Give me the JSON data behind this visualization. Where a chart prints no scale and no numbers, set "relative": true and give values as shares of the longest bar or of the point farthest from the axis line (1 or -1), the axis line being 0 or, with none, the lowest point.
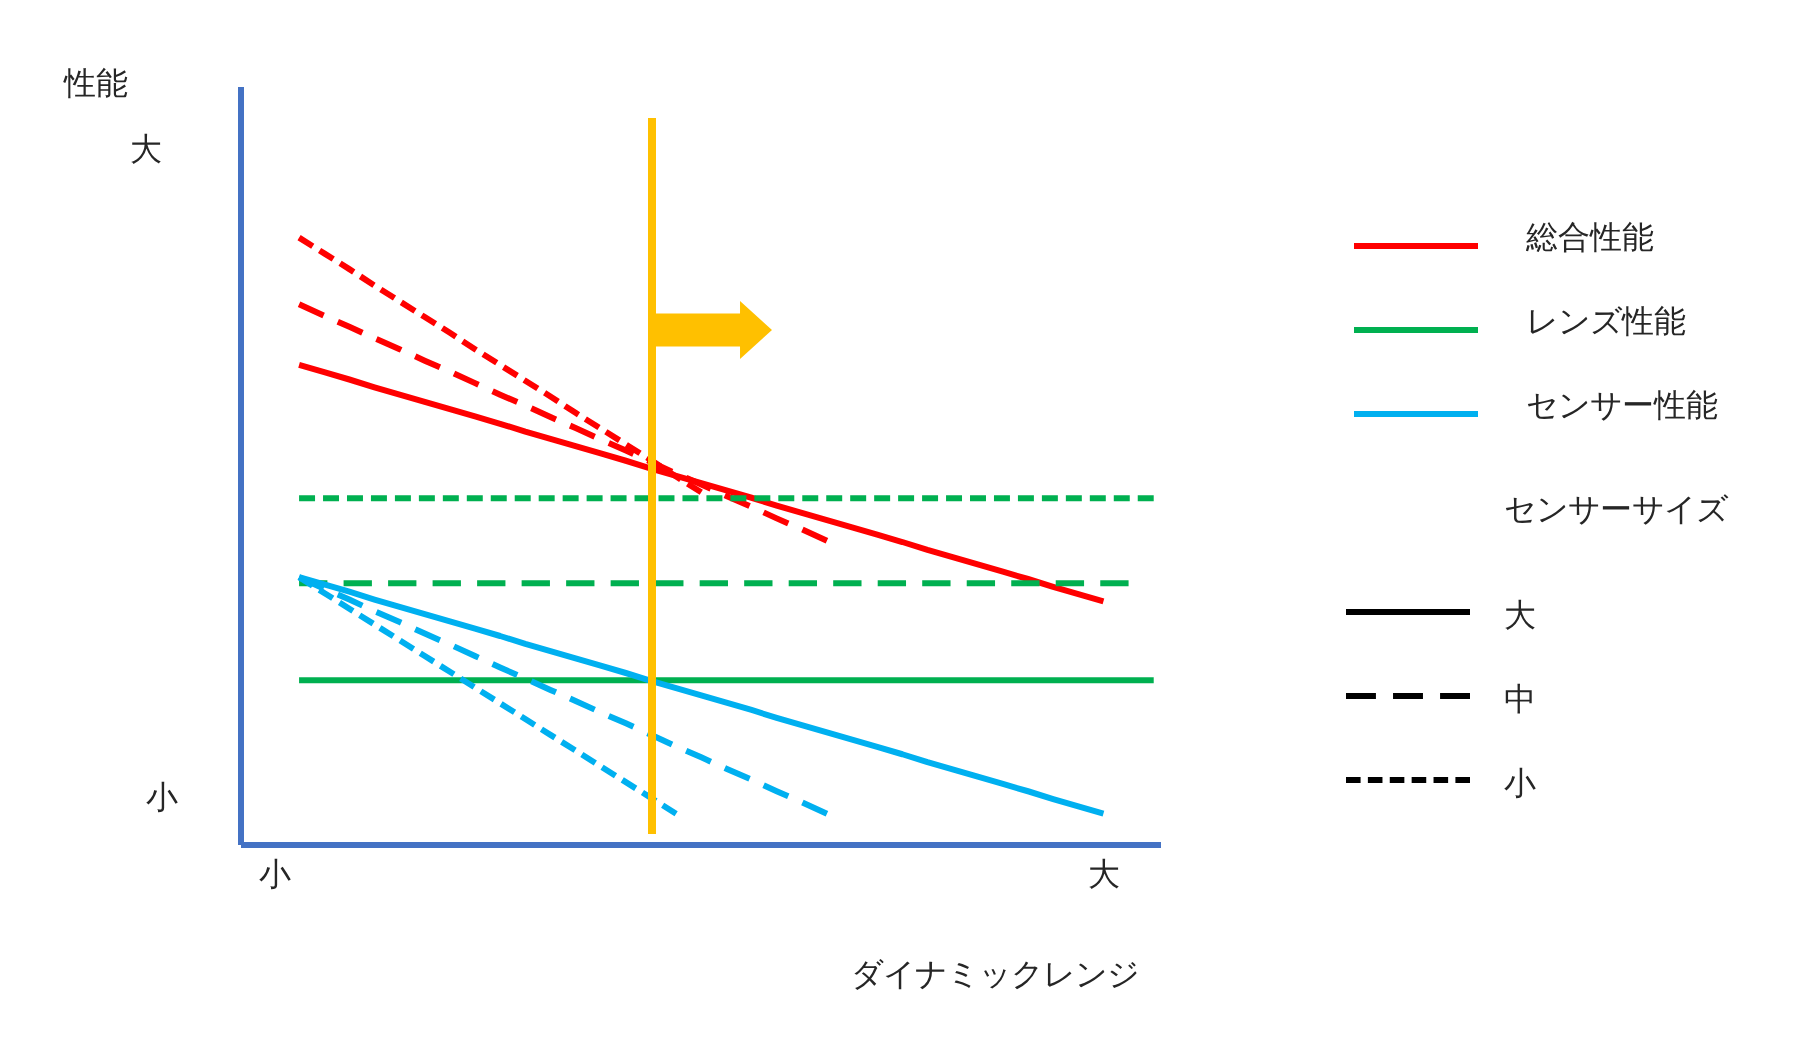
{
  "chart_data": {
    "type": "line",
    "relative": true,
    "xlabel": "ダイナミックレンジ",
    "legend_title": "センサーサイズ",
    "legend": "right",
    "categories": [
      "小",
      null,
      null,
      null,
      null,
      null,
      null,
      null,
      null,
      null,
      null,
      null,
      null,
      null,
      null,
      null,
      null,
      null,
      null,
      null,
      null,
      null,
      null,
      null,
      null,
      null,
      null,
      null,
      null,
      null,
      null,
      null,
      null,
      "大",
      null,
      null
    ],
    "series": [
      {
        "name": "総合性能",
        "color": "#ff0000",
        "line_style": "solid",
        "values": [
          null,
          0.79,
          0.778,
          0.766,
          0.753,
          0.741,
          0.729,
          0.717,
          0.705,
          0.693,
          0.68,
          0.668,
          0.656,
          0.644,
          0.632,
          0.619,
          0.607,
          0.595,
          0.583,
          0.571,
          0.558,
          0.546,
          0.534,
          0.522,
          0.51,
          0.498,
          0.485,
          0.473,
          0.461,
          0.449,
          0.437,
          0.424,
          0.412,
          0.4,
          null,
          null
        ]
      },
      {
        "color": "#ff0000",
        "line_style": "dashed",
        "values": [
          null,
          0.89,
          0.871,
          0.853,
          0.834,
          0.816,
          0.797,
          0.779,
          0.76,
          0.741,
          0.723,
          0.704,
          0.686,
          0.667,
          0.649,
          0.63,
          0.611,
          0.593,
          0.574,
          0.556,
          0.537,
          0.519,
          0.5,
          null,
          null,
          null,
          null,
          null,
          null,
          null,
          null,
          null,
          null,
          null,
          null,
          null
        ]
      },
      {
        "color": "#ff0000",
        "line_style": "dotted",
        "values": [
          null,
          1,
          0.974,
          0.948,
          0.921,
          0.895,
          0.869,
          0.843,
          0.816,
          0.79,
          0.764,
          0.738,
          0.711,
          0.685,
          0.659,
          0.633,
          0.606,
          0.58,
          null,
          null,
          null,
          null,
          null,
          null,
          null,
          null,
          null,
          null,
          null,
          null,
          null,
          null,
          null,
          null,
          null,
          null
        ]
      },
      {
        "name": "レンズ性能",
        "color": "#00b050",
        "line_style": "solid",
        "values": [
          null,
          0.27,
          0.27,
          0.27,
          0.27,
          0.27,
          0.27,
          0.27,
          0.27,
          0.27,
          0.27,
          0.27,
          0.27,
          0.27,
          0.27,
          0.27,
          0.27,
          0.27,
          0.27,
          0.27,
          0.27,
          0.27,
          0.27,
          0.27,
          0.27,
          0.27,
          0.27,
          0.27,
          0.27,
          0.27,
          0.27,
          0.27,
          0.27,
          0.27,
          0.27,
          0.27
        ]
      },
      {
        "color": "#00b050",
        "line_style": "dashed",
        "values": [
          null,
          0.43,
          0.43,
          0.43,
          0.43,
          0.43,
          0.43,
          0.43,
          0.43,
          0.43,
          0.43,
          0.43,
          0.43,
          0.43,
          0.43,
          0.43,
          0.43,
          0.43,
          0.43,
          0.43,
          0.43,
          0.43,
          0.43,
          0.43,
          0.43,
          0.43,
          0.43,
          0.43,
          0.43,
          0.43,
          0.43,
          0.43,
          0.43,
          0.43,
          0.43,
          null
        ]
      },
      {
        "color": "#00b050",
        "line_style": "dotted",
        "values": [
          null,
          0.57,
          0.57,
          0.57,
          0.57,
          0.57,
          0.57,
          0.57,
          0.57,
          0.57,
          0.57,
          0.57,
          0.57,
          0.57,
          0.57,
          0.57,
          0.57,
          0.57,
          0.57,
          0.57,
          0.57,
          0.57,
          0.57,
          0.57,
          0.57,
          0.57,
          0.57,
          0.57,
          0.57,
          0.57,
          0.57,
          0.57,
          0.57,
          0.57,
          0.57,
          0.57
        ]
      },
      {
        "name": "センサー性能",
        "color": "#00b0f0",
        "line_style": "solid",
        "values": [
          null,
          0.44,
          0.428,
          0.416,
          0.403,
          0.391,
          0.379,
          0.367,
          0.355,
          0.343,
          0.33,
          0.318,
          0.306,
          0.294,
          0.282,
          0.269,
          0.257,
          0.245,
          0.233,
          0.221,
          0.208,
          0.196,
          0.184,
          0.172,
          0.16,
          0.148,
          0.135,
          0.123,
          0.111,
          0.099,
          0.087,
          0.074,
          0.062,
          0.05,
          null,
          null
        ]
      },
      {
        "color": "#00b0f0",
        "line_style": "dashed",
        "values": [
          null,
          0.44,
          0.421,
          0.403,
          0.384,
          0.366,
          0.347,
          0.329,
          0.31,
          0.291,
          0.273,
          0.254,
          0.236,
          0.217,
          0.199,
          0.18,
          0.161,
          0.143,
          0.124,
          0.106,
          0.087,
          0.069,
          0.05,
          null,
          null,
          null,
          null,
          null,
          null,
          null,
          null,
          null,
          null,
          null,
          null,
          null
        ]
      },
      {
        "color": "#00b0f0",
        "line_style": "dotted",
        "values": [
          null,
          0.44,
          0.414,
          0.388,
          0.362,
          0.336,
          0.31,
          0.284,
          0.258,
          0.232,
          0.206,
          0.18,
          0.154,
          0.128,
          0.102,
          0.076,
          0.05,
          null,
          null,
          null,
          null,
          null,
          null,
          null,
          null,
          null,
          null,
          null,
          null,
          null,
          null,
          null,
          null,
          null,
          null,
          null
        ]
      }
    ],
    "annotations": [
      "性能",
      "大",
      "小",
      "大",
      "中",
      "小"
    ]
  }
}
